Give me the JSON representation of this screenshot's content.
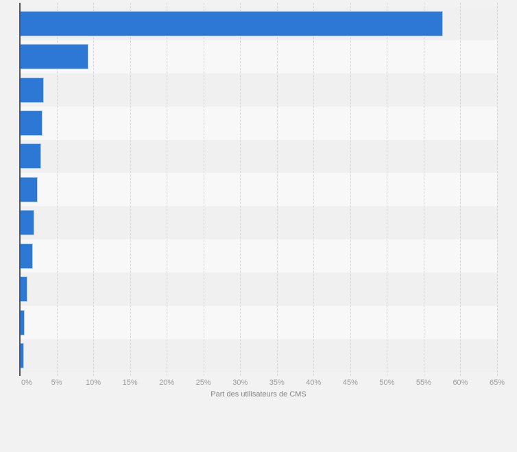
{
  "chart_data": {
    "type": "bar",
    "orientation": "horizontal",
    "title": "",
    "xlabel": "Part des utilisateurs de CMS",
    "ylabel": "",
    "xlim": [
      0,
      65
    ],
    "x_tick_step": 5,
    "x_tick_labels": [
      "0%",
      "5%",
      "10%",
      "15%",
      "20%",
      "25%",
      "30%",
      "35%",
      "40%",
      "45%",
      "50%",
      "55%",
      "60%",
      "65%"
    ],
    "y_category_labels_visible": false,
    "values": [
      57.6,
      9.3,
      3.3,
      3.1,
      2.9,
      2.4,
      2.0,
      1.8,
      1.0,
      0.7,
      0.6
    ],
    "legend": "none",
    "grid": "vertical-dashed",
    "row_bands": "alternating"
  },
  "style": {
    "bar_color": "#2d78d4",
    "bar_border_color": "rgba(255,255,255,0.65)",
    "page_background": "#f2f2f2",
    "row_band_odd": "#f0f0f1",
    "row_band_even": "#f8f8f8",
    "gridline_color": "#d4d4d6",
    "axis_line_color": "#55565a",
    "tick_label_color": "#9b9b9b",
    "axis_title_color": "#828282"
  }
}
